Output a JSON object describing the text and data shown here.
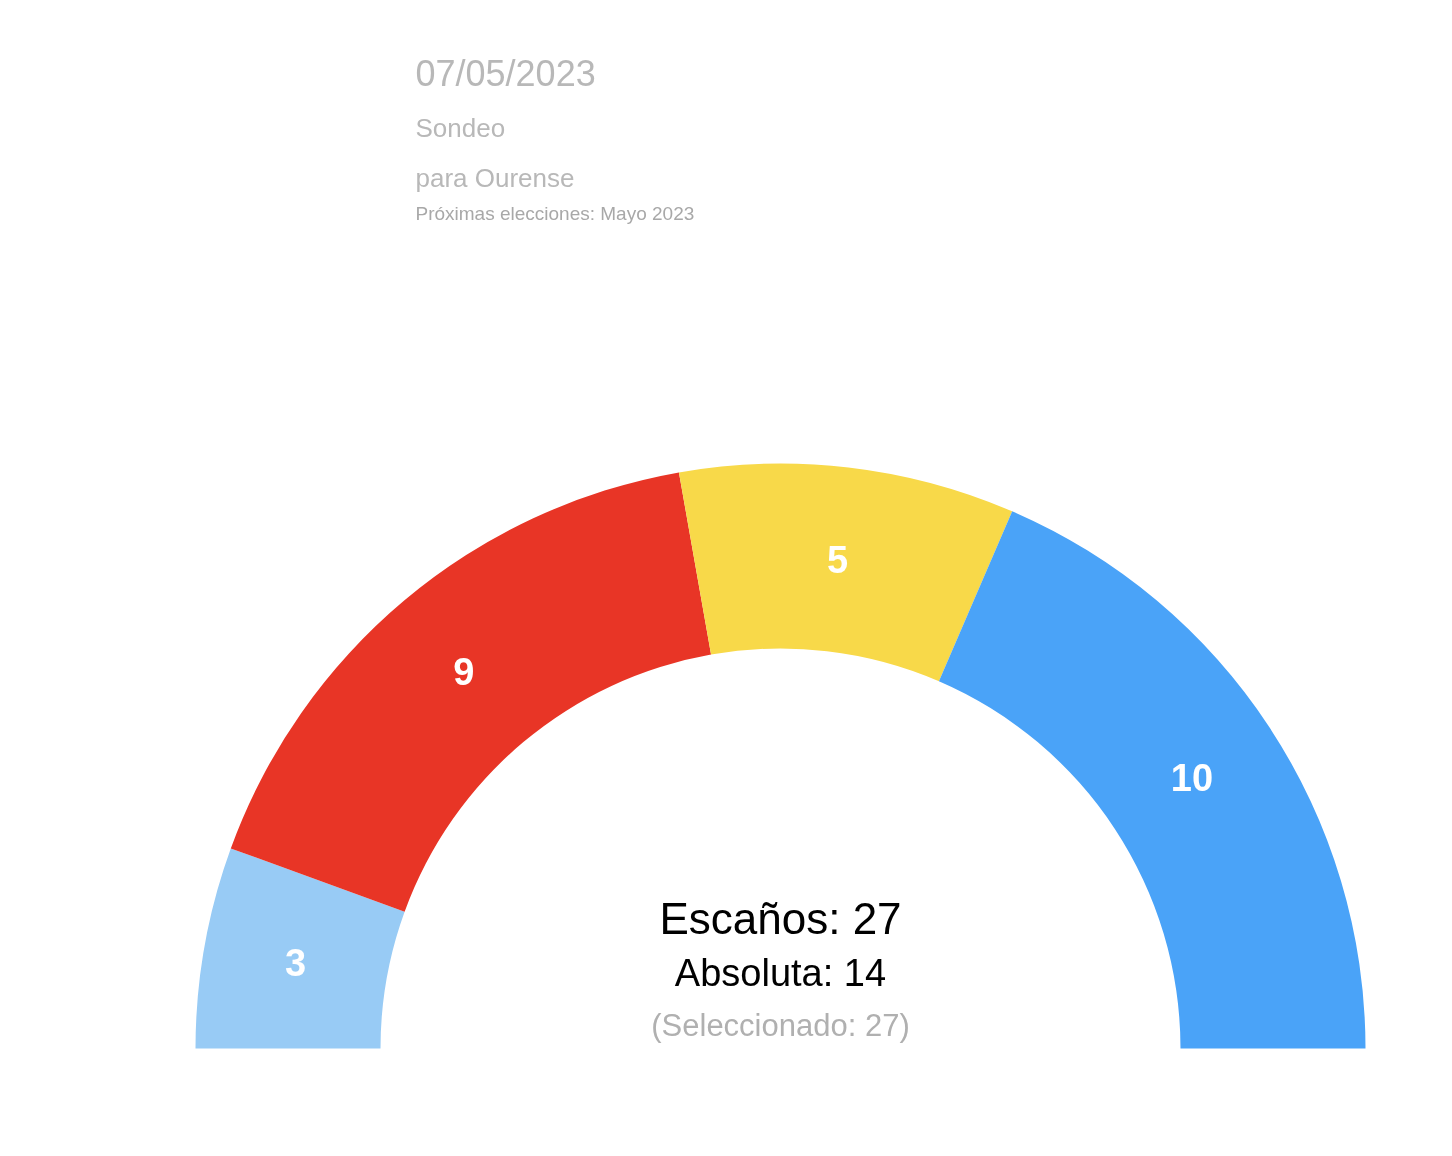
{
  "chart_data": {
    "type": "donut",
    "categories": [
      null,
      null,
      null,
      null
    ],
    "values": [
      3,
      9,
      5,
      10
    ],
    "colors": [
      "#98cbf5",
      "#e83526",
      "#f8d949",
      "#4aa3f8"
    ],
    "data_labels": true,
    "annotations": [
      "07/05/2023",
      "Sondeo",
      "para Ourense",
      "Próximas elecciones: Mayo 2023",
      "Escaños: 27",
      "Absoluta: 14",
      "(Seleccionado: 27)"
    ]
  }
}
